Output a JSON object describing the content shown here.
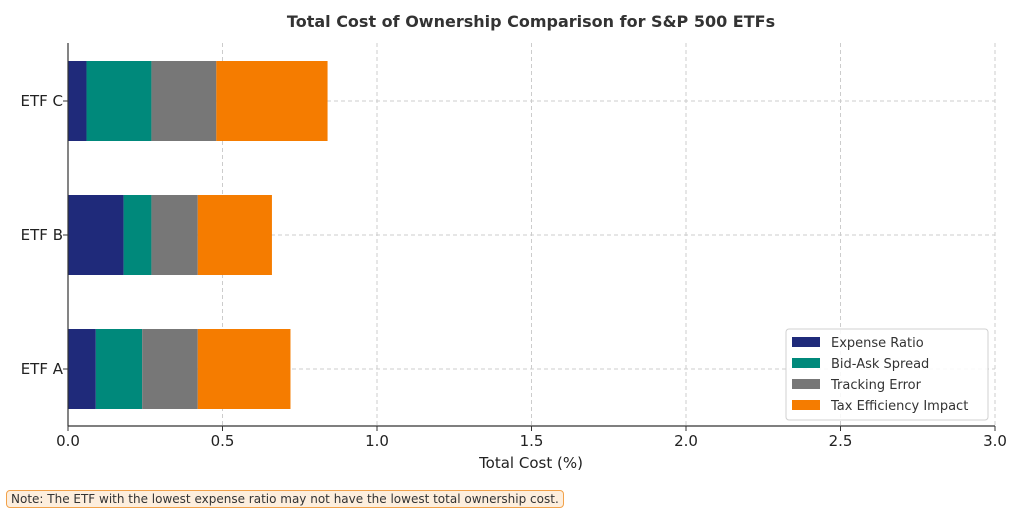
{
  "chart_data": {
    "type": "bar",
    "orientation": "horizontal",
    "stacked": true,
    "title": "Total Cost of Ownership Comparison for S&P 500 ETFs",
    "xlabel": "Total Cost (%)",
    "ylabel": "",
    "xlim": [
      0,
      3.0
    ],
    "xticks": [
      "0.0",
      "0.5",
      "1.0",
      "1.5",
      "2.0",
      "2.5",
      "3.0"
    ],
    "categories": [
      "ETF A",
      "ETF B",
      "ETF C"
    ],
    "series": [
      {
        "name": "Expense Ratio",
        "color": "#1f2a7a",
        "values": [
          0.09,
          0.18,
          0.06
        ]
      },
      {
        "name": "Bid-Ask Spread",
        "color": "#00897b",
        "values": [
          0.15,
          0.09,
          0.21
        ]
      },
      {
        "name": "Tracking Error",
        "color": "#777777",
        "values": [
          0.18,
          0.15,
          0.21
        ]
      },
      {
        "name": "Tax Efficiency Impact",
        "color": "#f57c00",
        "values": [
          0.3,
          0.24,
          0.36
        ]
      }
    ],
    "grid": true,
    "legend_position": "bottom-right"
  },
  "note": "Note: The ETF with the lowest expense ratio may not have the lowest total ownership cost."
}
